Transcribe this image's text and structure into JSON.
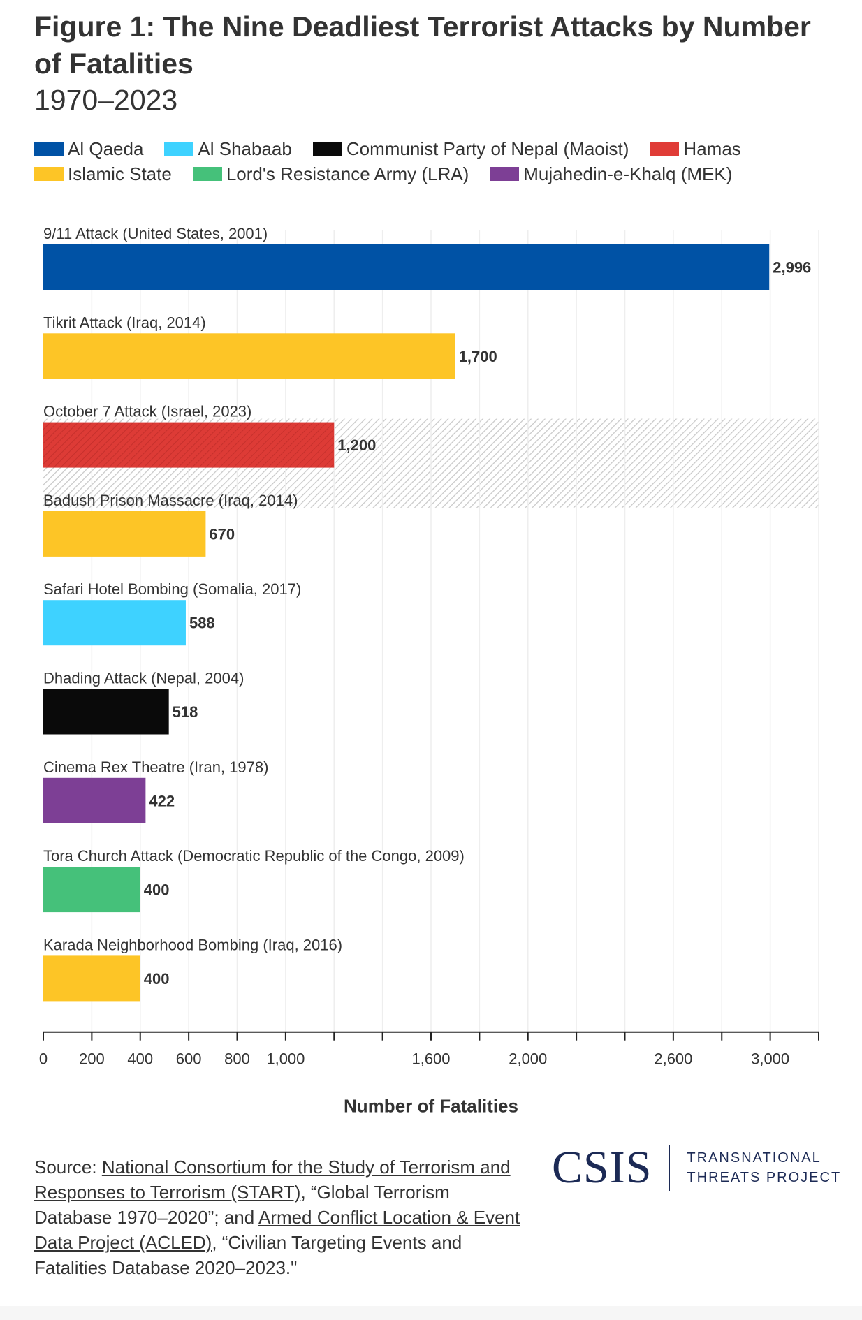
{
  "header": {
    "title": "Figure 1: The Nine Deadliest Terrorist Attacks by Number of Fatalities",
    "subtitle": "1970–2023"
  },
  "legend": [
    {
      "label": "Al Qaeda",
      "color": "#0052a5"
    },
    {
      "label": "Al Shabaab",
      "color": "#3ed2ff"
    },
    {
      "label": "Communist Party of Nepal (Maoist)",
      "color": "#0a0a0a"
    },
    {
      "label": "Hamas",
      "color": "#e03c37"
    },
    {
      "label": "Islamic State",
      "color": "#fdc526"
    },
    {
      "label": "Lord's Resistance Army (LRA)",
      "color": "#45c17a"
    },
    {
      "label": "Mujahedin-e-Khalq (MEK)",
      "color": "#7d3f95"
    }
  ],
  "chart_data": {
    "type": "bar",
    "orientation": "horizontal",
    "categories": [
      "9/11 Attack (United States, 2001)",
      "Tikrit Attack (Iraq, 2014)",
      "October 7 Attack (Israel, 2023)",
      "Badush Prison Massacre (Iraq, 2014)",
      "Safari Hotel Bombing (Somalia, 2017)",
      "Dhading Attack (Nepal, 2004)",
      "Cinema Rex Theatre (Iran, 1978)",
      "Tora Church Attack (Democratic Republic of the Congo, 2009)",
      "Karada Neighborhood Bombing (Iraq, 2016)"
    ],
    "values": [
      2996,
      1700,
      1200,
      670,
      588,
      518,
      422,
      400,
      400
    ],
    "value_labels": [
      "2,996",
      "1,700",
      "1,200",
      "670",
      "588",
      "518",
      "422",
      "400",
      "400"
    ],
    "groups": [
      "Al Qaeda",
      "Islamic State",
      "Hamas",
      "Islamic State",
      "Al Shabaab",
      "Communist Party of Nepal (Maoist)",
      "Mujahedin-e-Khalq (MEK)",
      "Lord's Resistance Army (LRA)",
      "Islamic State"
    ],
    "highlighted": "October 7 Attack (Israel, 2023)",
    "xlabel": "Number of Fatalities",
    "xlim": [
      0,
      3200
    ],
    "ticks": [
      0,
      200,
      400,
      600,
      800,
      1000,
      1200,
      1400,
      1600,
      1800,
      2000,
      2200,
      2400,
      2600,
      2800,
      3000,
      3200
    ],
    "tick_labels": [
      "0",
      "200",
      "400",
      "600",
      "800",
      "1,000",
      "",
      "",
      "1,600",
      "",
      "2,000",
      "",
      "",
      "2,600",
      "",
      "3,000",
      ""
    ],
    "grid": true
  },
  "source": {
    "prefix": "Source: ",
    "link1": "National Consortium for the Study of Terrorism and Responses to Terrorism (START)",
    "mid": ", “Global Terrorism Database 1970–2020”; and ",
    "link2": "Armed Conflict Location & Event Data Project (ACLED)",
    "suffix": ", “Civilian Targeting Events and Fatalities Database 2020–2023.\""
  },
  "logo": {
    "word": "CSIS",
    "tag_line1": "TRANSNATIONAL",
    "tag_line2": "THREATS PROJECT"
  }
}
